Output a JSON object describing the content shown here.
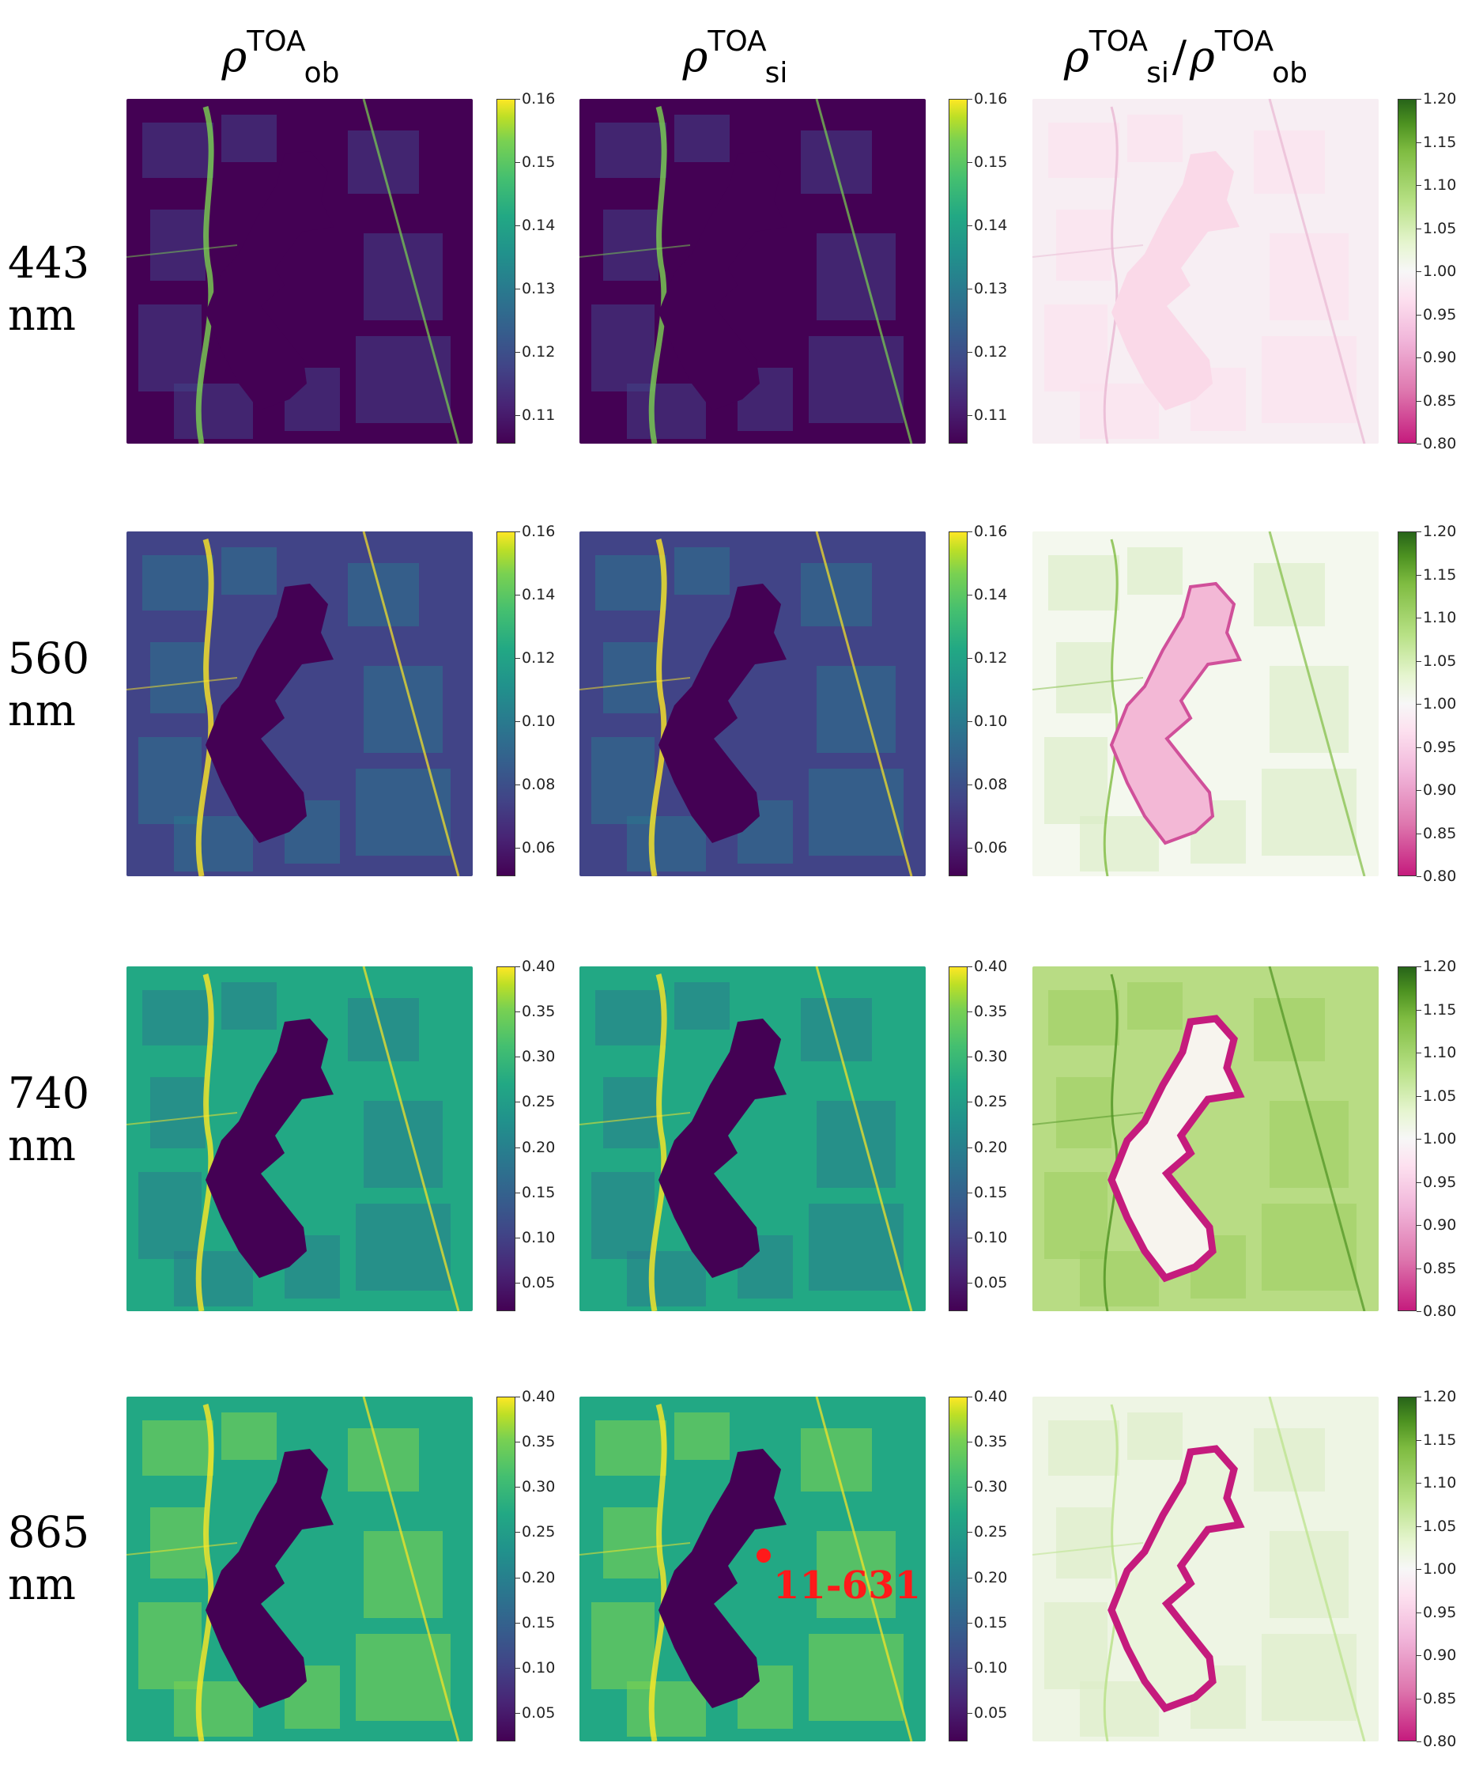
{
  "column_headers": [
    {
      "symbol": "ρ",
      "sup": "TOA",
      "sub": "ob"
    },
    {
      "symbol": "ρ",
      "sup": "TOA",
      "sub": "si"
    },
    {
      "symbol": "ρ",
      "sup": "TOA",
      "sub": "si",
      "symbol2": "ρ",
      "sup2": "TOA",
      "sub2": "ob",
      "separator": "/"
    }
  ],
  "rows": [
    {
      "label_top": "443",
      "label_bottom": "nm",
      "reflectance_ticks": [
        "0.16",
        "0.15",
        "0.14",
        "0.13",
        "0.12",
        "0.11"
      ],
      "ratio_ticks": [
        "1.20",
        "1.15",
        "1.10",
        "1.05",
        "1.00",
        "0.95",
        "0.90",
        "0.85",
        "0.80"
      ]
    },
    {
      "label_top": "560",
      "label_bottom": "nm",
      "reflectance_ticks": [
        "0.16",
        "0.14",
        "0.12",
        "0.10",
        "0.08",
        "0.06"
      ],
      "ratio_ticks": [
        "1.20",
        "1.15",
        "1.10",
        "1.05",
        "1.00",
        "0.95",
        "0.90",
        "0.85",
        "0.80"
      ]
    },
    {
      "label_top": "740",
      "label_bottom": "nm",
      "reflectance_ticks": [
        "0.40",
        "0.35",
        "0.30",
        "0.25",
        "0.20",
        "0.15",
        "0.10",
        "0.05"
      ],
      "ratio_ticks": [
        "1.20",
        "1.15",
        "1.10",
        "1.05",
        "1.00",
        "0.95",
        "0.90",
        "0.85",
        "0.80"
      ]
    },
    {
      "label_top": "865",
      "label_bottom": "nm",
      "reflectance_ticks": [
        "0.40",
        "0.35",
        "0.30",
        "0.25",
        "0.20",
        "0.15",
        "0.10",
        "0.05"
      ],
      "ratio_ticks": [
        "1.20",
        "1.15",
        "1.10",
        "1.05",
        "1.00",
        "0.95",
        "0.90",
        "0.85",
        "0.80"
      ]
    }
  ],
  "annotation": {
    "label": "11-631",
    "color": "#ff1a1a"
  },
  "colormaps": {
    "reflectance": [
      "#440154",
      "#414487",
      "#2a788e",
      "#22a884",
      "#7ad151",
      "#fde725"
    ],
    "ratio": [
      "#c51b7d",
      "#f1b6da",
      "#f7f7f7",
      "#b8e186",
      "#276419"
    ]
  }
}
